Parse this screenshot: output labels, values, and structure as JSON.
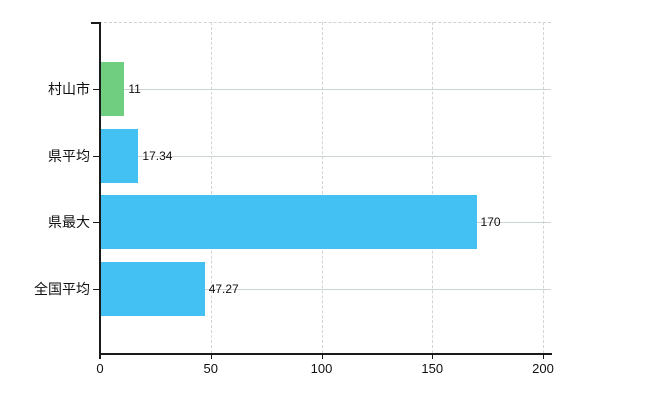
{
  "chart": {
    "background": "#ffffff",
    "axis_color": "#1a1a1a",
    "grid_vertical_color": "#d4d4d4",
    "grid_horizontal_color": "#ccd4d6",
    "text_color": "#111111",
    "bar_color_default": "#42c1f2",
    "bar_color_highlight": "#6fce80"
  },
  "chart_data": {
    "type": "bar",
    "orientation": "horizontal",
    "title": "",
    "xlabel": "",
    "ylabel": "",
    "categories": [
      "村山市",
      "県平均",
      "県最大",
      "全国平均"
    ],
    "values": [
      11,
      17.34,
      170,
      47.27
    ],
    "value_labels": [
      "11",
      "17.34",
      "170",
      "47.27"
    ],
    "bar_colors": [
      "#6fce80",
      "#42c1f2",
      "#42c1f2",
      "#42c1f2"
    ],
    "xlim": [
      0,
      200
    ],
    "x_ticks": [
      0,
      50,
      100,
      150,
      200
    ],
    "x_tick_labels": [
      "0",
      "50",
      "100",
      "150",
      "200"
    ],
    "grid": true,
    "legend": false
  }
}
